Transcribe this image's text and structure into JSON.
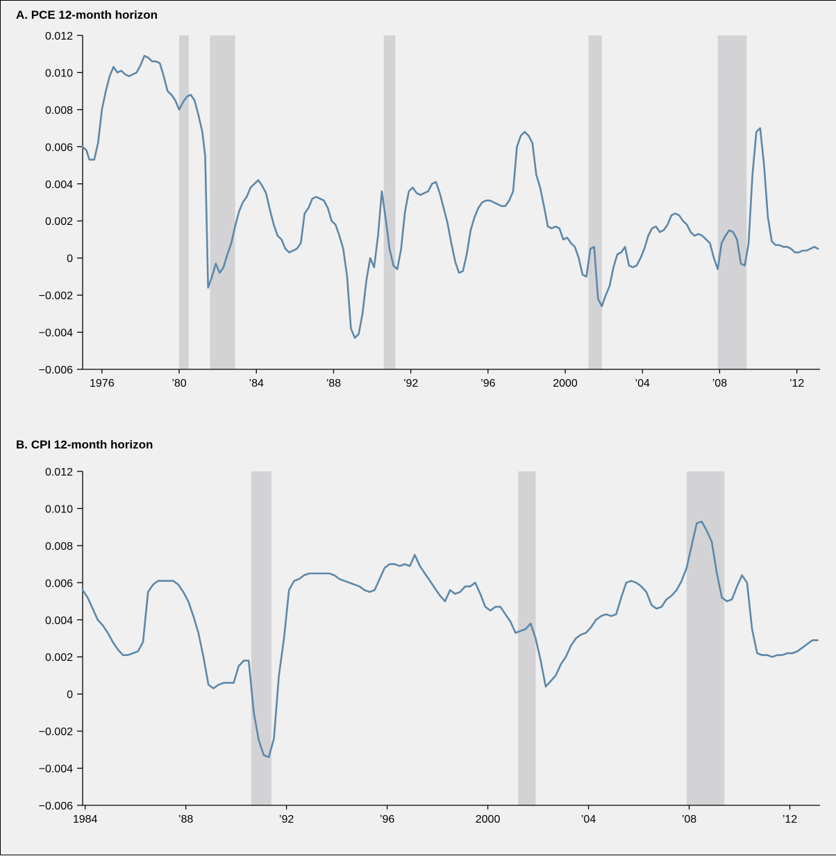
{
  "colors": {
    "series": "#5d87a8",
    "recession": "#d3d3d5",
    "background": "#f0f0f0"
  },
  "chart_data": [
    {
      "type": "line",
      "title": "A. PCE 12-month horizon",
      "xlim": [
        1975.0,
        2013.2
      ],
      "ylim": [
        -0.006,
        0.012
      ],
      "yticks": [
        0.012,
        0.01,
        0.008,
        0.006,
        0.004,
        0.002,
        0,
        -0.002,
        -0.004,
        -0.006
      ],
      "ytick_labels": [
        "0.012",
        "0.010",
        "0.008",
        "0.006",
        "0.004",
        "0.002",
        "0",
        "−0.002",
        "−0.004",
        "−0.006"
      ],
      "xticks": [
        1976,
        1980,
        1984,
        1988,
        1992,
        1996,
        2000,
        2004,
        2008,
        2012
      ],
      "xtick_labels": [
        "1976",
        "’80",
        "’84",
        "’88",
        "’92",
        "’96",
        "2000",
        "’04",
        "’08",
        "’12"
      ],
      "grid": false,
      "recessions": [
        [
          1980.0,
          1980.5
        ],
        [
          1981.6,
          1982.9
        ],
        [
          1990.6,
          1991.2
        ],
        [
          2001.2,
          2001.9
        ],
        [
          2007.9,
          2009.4
        ]
      ],
      "series": [
        {
          "x": [
            1975.0,
            1975.2,
            1975.35,
            1975.6,
            1975.8,
            1976.0,
            1976.2,
            1976.4,
            1976.6,
            1976.8,
            1977.0,
            1977.2,
            1977.4,
            1977.6,
            1977.8,
            1978.0,
            1978.2,
            1978.4,
            1978.6,
            1978.8,
            1979.0,
            1979.2,
            1979.4,
            1979.6,
            1979.8,
            1980.0,
            1980.2,
            1980.4,
            1980.6,
            1980.8,
            1981.0,
            1981.2,
            1981.35,
            1981.5,
            1981.7,
            1981.9,
            1982.1,
            1982.3,
            1982.5,
            1982.7,
            1982.9,
            1983.1,
            1983.3,
            1983.5,
            1983.7,
            1983.9,
            1984.1,
            1984.3,
            1984.5,
            1984.7,
            1984.9,
            1985.1,
            1985.3,
            1985.5,
            1985.7,
            1985.9,
            1986.1,
            1986.3,
            1986.5,
            1986.7,
            1986.9,
            1987.1,
            1987.3,
            1987.5,
            1987.7,
            1987.9,
            1988.1,
            1988.3,
            1988.5,
            1988.7,
            1988.9,
            1989.1,
            1989.3,
            1989.5,
            1989.7,
            1989.9,
            1990.1,
            1990.3,
            1990.5,
            1990.7,
            1990.9,
            1991.1,
            1991.3,
            1991.5,
            1991.7,
            1991.9,
            1992.1,
            1992.3,
            1992.5,
            1992.7,
            1992.9,
            1993.1,
            1993.3,
            1993.5,
            1993.7,
            1993.9,
            1994.1,
            1994.3,
            1994.5,
            1994.7,
            1994.9,
            1995.1,
            1995.3,
            1995.5,
            1995.7,
            1995.9,
            1996.1,
            1996.3,
            1996.5,
            1996.7,
            1996.9,
            1997.1,
            1997.3,
            1997.5,
            1997.7,
            1997.9,
            1998.1,
            1998.3,
            1998.5,
            1998.7,
            1998.9,
            1999.1,
            1999.3,
            1999.5,
            1999.7,
            1999.9,
            2000.1,
            2000.3,
            2000.5,
            2000.7,
            2000.9,
            2001.1,
            2001.3,
            2001.5,
            2001.7,
            2001.9,
            2002.1,
            2002.3,
            2002.5,
            2002.7,
            2002.9,
            2003.1,
            2003.3,
            2003.5,
            2003.7,
            2003.9,
            2004.1,
            2004.3,
            2004.5,
            2004.7,
            2004.9,
            2005.1,
            2005.3,
            2005.5,
            2005.7,
            2005.9,
            2006.1,
            2006.3,
            2006.5,
            2006.7,
            2006.9,
            2007.1,
            2007.3,
            2007.5,
            2007.7,
            2007.9,
            2008.1,
            2008.3,
            2008.5,
            2008.7,
            2008.9,
            2009.1,
            2009.3,
            2009.5,
            2009.7,
            2009.9,
            2010.1,
            2010.3,
            2010.5,
            2010.7,
            2010.9,
            2011.1,
            2011.3,
            2011.5,
            2011.7,
            2011.9,
            2012.1,
            2012.3,
            2012.5,
            2012.7,
            2012.9,
            2013.1
          ],
          "values": [
            0.006,
            0.0058,
            0.0053,
            0.0053,
            0.0062,
            0.008,
            0.009,
            0.0098,
            0.0103,
            0.01,
            0.0101,
            0.0099,
            0.0098,
            0.0099,
            0.01,
            0.0104,
            0.0109,
            0.0108,
            0.0106,
            0.0106,
            0.0105,
            0.0098,
            0.009,
            0.0088,
            0.0085,
            0.008,
            0.0084,
            0.0087,
            0.0088,
            0.0085,
            0.0077,
            0.0068,
            0.0055,
            -0.0016,
            -0.001,
            -0.0003,
            -0.0008,
            -0.0005,
            0.0002,
            0.0008,
            0.0017,
            0.0025,
            0.003,
            0.0033,
            0.0038,
            0.004,
            0.0042,
            0.0039,
            0.0035,
            0.0026,
            0.0018,
            0.0012,
            0.001,
            0.0005,
            0.0003,
            0.0004,
            0.0005,
            0.0008,
            0.0024,
            0.0027,
            0.0032,
            0.0033,
            0.0032,
            0.0031,
            0.0027,
            0.002,
            0.0018,
            0.0012,
            0.0005,
            -0.001,
            -0.0038,
            -0.0043,
            -0.0041,
            -0.003,
            -0.0012,
            0.0,
            -0.0005,
            0.0012,
            0.0036,
            0.0021,
            0.0005,
            -0.0004,
            -0.0006,
            0.0005,
            0.0025,
            0.0036,
            0.0038,
            0.0035,
            0.0034,
            0.0035,
            0.0036,
            0.004,
            0.0041,
            0.0035,
            0.0027,
            0.0019,
            0.0008,
            -0.0002,
            -0.0008,
            -0.0007,
            0.0002,
            0.0015,
            0.0022,
            0.0027,
            0.003,
            0.0031,
            0.0031,
            0.003,
            0.0029,
            0.0028,
            0.0028,
            0.0031,
            0.0036,
            0.006,
            0.0066,
            0.0068,
            0.0066,
            0.0062,
            0.0045,
            0.0038,
            0.0028,
            0.0017,
            0.0016,
            0.0017,
            0.0016,
            0.001,
            0.0011,
            0.0008,
            0.0006,
            0.0,
            -0.0009,
            -0.001,
            0.0005,
            0.0006,
            -0.0022,
            -0.0026,
            -0.002,
            -0.0015,
            -0.0005,
            0.0002,
            0.0003,
            0.0006,
            -0.0004,
            -0.0005,
            -0.0004,
            0.0,
            0.0005,
            0.0012,
            0.0016,
            0.0017,
            0.0014,
            0.0015,
            0.0018,
            0.0023,
            0.0024,
            0.0023,
            0.002,
            0.0018,
            0.0014,
            0.0012,
            0.0013,
            0.0012,
            0.001,
            0.0008,
            0.0,
            -0.0006,
            0.0008,
            0.0012,
            0.0015,
            0.0014,
            0.001,
            -0.0003,
            -0.0004,
            0.0008,
            0.0045,
            0.0068,
            0.007,
            0.005,
            0.0022,
            0.0009,
            0.0007,
            0.0007,
            0.0006,
            0.0006,
            0.0005,
            0.0003,
            0.0003,
            0.0004,
            0.0004,
            0.0005,
            0.0006,
            0.0005
          ]
        }
      ]
    },
    {
      "type": "line",
      "title": "B. CPI 12-month horizon",
      "xlim": [
        1983.9,
        2013.2
      ],
      "ylim": [
        -0.006,
        0.012
      ],
      "yticks": [
        0.012,
        0.01,
        0.008,
        0.006,
        0.004,
        0.002,
        0,
        -0.002,
        -0.004,
        -0.006
      ],
      "ytick_labels": [
        "0.012",
        "0.010",
        "0.008",
        "0.006",
        "0.004",
        "0.002",
        "0",
        "−0.002",
        "−0.004",
        "−0.006"
      ],
      "xticks": [
        1984,
        1988,
        1992,
        1996,
        2000,
        2004,
        2008,
        2012
      ],
      "xtick_labels": [
        "1984",
        "’88",
        "’92",
        "’96",
        "2000",
        "’04",
        "’08",
        "’12"
      ],
      "grid": false,
      "recessions": [
        [
          1990.6,
          1991.4
        ],
        [
          2001.2,
          2001.9
        ],
        [
          2007.9,
          2009.4
        ]
      ],
      "series": [
        {
          "x": [
            1983.9,
            1984.1,
            1984.3,
            1984.5,
            1984.7,
            1984.9,
            1985.1,
            1985.3,
            1985.5,
            1985.7,
            1985.9,
            1986.1,
            1986.3,
            1986.5,
            1986.7,
            1986.9,
            1987.1,
            1987.3,
            1987.5,
            1987.7,
            1987.9,
            1988.1,
            1988.3,
            1988.5,
            1988.7,
            1988.9,
            1989.1,
            1989.3,
            1989.5,
            1989.7,
            1989.9,
            1990.1,
            1990.3,
            1990.5,
            1990.7,
            1990.9,
            1991.1,
            1991.3,
            1991.5,
            1991.7,
            1991.9,
            1992.1,
            1992.3,
            1992.5,
            1992.7,
            1992.9,
            1993.1,
            1993.3,
            1993.5,
            1993.7,
            1993.9,
            1994.1,
            1994.3,
            1994.5,
            1994.7,
            1994.9,
            1995.1,
            1995.3,
            1995.5,
            1995.7,
            1995.9,
            1996.1,
            1996.3,
            1996.5,
            1996.7,
            1996.9,
            1997.1,
            1997.3,
            1997.5,
            1997.7,
            1997.9,
            1998.1,
            1998.3,
            1998.5,
            1998.7,
            1998.9,
            1999.1,
            1999.3,
            1999.5,
            1999.7,
            1999.9,
            2000.1,
            2000.3,
            2000.5,
            2000.7,
            2000.9,
            2001.1,
            2001.3,
            2001.5,
            2001.7,
            2001.9,
            2002.1,
            2002.3,
            2002.5,
            2002.7,
            2002.9,
            2003.1,
            2003.3,
            2003.5,
            2003.7,
            2003.9,
            2004.1,
            2004.3,
            2004.5,
            2004.7,
            2004.9,
            2005.1,
            2005.3,
            2005.5,
            2005.7,
            2005.9,
            2006.1,
            2006.3,
            2006.5,
            2006.7,
            2006.9,
            2007.1,
            2007.3,
            2007.5,
            2007.7,
            2007.9,
            2008.1,
            2008.3,
            2008.5,
            2008.7,
            2008.9,
            2009.1,
            2009.3,
            2009.5,
            2009.7,
            2009.9,
            2010.1,
            2010.3,
            2010.5,
            2010.7,
            2010.9,
            2011.1,
            2011.3,
            2011.5,
            2011.7,
            2011.9,
            2012.1,
            2012.3,
            2012.5,
            2012.7,
            2012.9,
            2013.1
          ],
          "values": [
            0.0056,
            0.0052,
            0.0046,
            0.004,
            0.0037,
            0.0033,
            0.0028,
            0.0024,
            0.0021,
            0.0021,
            0.0022,
            0.0023,
            0.0028,
            0.0055,
            0.0059,
            0.0061,
            0.0061,
            0.0061,
            0.0061,
            0.0059,
            0.0055,
            0.005,
            0.0042,
            0.0033,
            0.002,
            0.0005,
            0.0003,
            0.0005,
            0.0006,
            0.0006,
            0.0006,
            0.0015,
            0.0018,
            0.0018,
            -0.001,
            -0.0025,
            -0.0033,
            -0.0034,
            -0.0024,
            0.001,
            0.003,
            0.0056,
            0.0061,
            0.0062,
            0.0064,
            0.0065,
            0.0065,
            0.0065,
            0.0065,
            0.0065,
            0.0064,
            0.0062,
            0.0061,
            0.006,
            0.0059,
            0.0058,
            0.0056,
            0.0055,
            0.0056,
            0.0062,
            0.0068,
            0.007,
            0.007,
            0.0069,
            0.007,
            0.0069,
            0.0075,
            0.0069,
            0.0065,
            0.0061,
            0.0057,
            0.0053,
            0.005,
            0.0056,
            0.0054,
            0.0055,
            0.0058,
            0.0058,
            0.006,
            0.0054,
            0.0047,
            0.0045,
            0.0047,
            0.0047,
            0.0043,
            0.0039,
            0.0033,
            0.0034,
            0.0035,
            0.0038,
            0.003,
            0.0018,
            0.0004,
            0.0007,
            0.001,
            0.0016,
            0.002,
            0.0026,
            0.003,
            0.0032,
            0.0033,
            0.0036,
            0.004,
            0.0042,
            0.0043,
            0.0042,
            0.0043,
            0.0052,
            0.006,
            0.0061,
            0.006,
            0.0058,
            0.0055,
            0.0048,
            0.0046,
            0.0047,
            0.0051,
            0.0053,
            0.0056,
            0.0061,
            0.0068,
            0.008,
            0.0092,
            0.0093,
            0.0088,
            0.0082,
            0.0065,
            0.0052,
            0.005,
            0.0051,
            0.0058,
            0.0064,
            0.006,
            0.0035,
            0.0022,
            0.0021,
            0.0021,
            0.002,
            0.0021,
            0.0021,
            0.0022,
            0.0022,
            0.0023,
            0.0025,
            0.0027,
            0.0029,
            0.0029
          ]
        }
      ]
    }
  ]
}
